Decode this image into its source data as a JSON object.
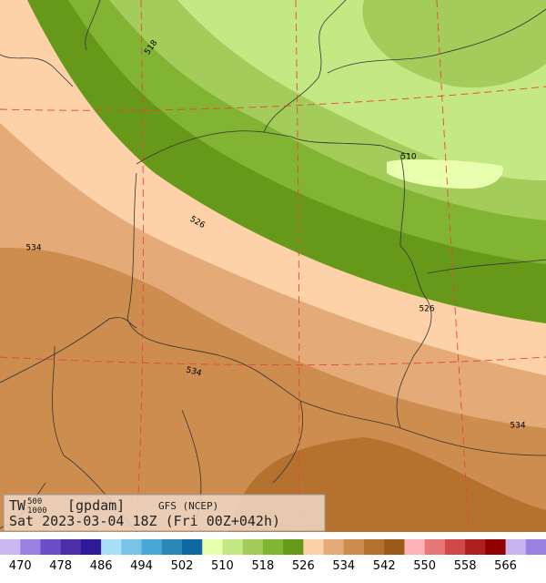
{
  "header": {
    "variable": "TW",
    "upper_level": "500",
    "lower_level": "1000",
    "unit": "[gpdam]",
    "model": "GFS (NCEP)",
    "valid_time": "Sat 2023-03-04 18Z (Fri 00Z+042h)"
  },
  "contour_labels": [
    "518",
    "526",
    "510",
    "534",
    "526",
    "534",
    "534"
  ],
  "colorbar": {
    "colors": [
      "#c9b8ef",
      "#9a80e0",
      "#6a50c8",
      "#4b2ea8",
      "#2e1a98",
      "#a8e0f8",
      "#78c4e8",
      "#48a8d8",
      "#2a88b8",
      "#1068a0",
      "#e8ffb0",
      "#c4e883",
      "#a3cc5a",
      "#80b432",
      "#66991a",
      "#fdd2a8",
      "#e4aa78",
      "#cd8d4f",
      "#b5722f",
      "#9a5a1a",
      "#ffb4b8",
      "#e87878",
      "#d04848",
      "#b02020",
      "#900000",
      "#c8b4f0",
      "#9a80e0"
    ],
    "ticks": [
      "470",
      "478",
      "486",
      "494",
      "502",
      "510",
      "518",
      "526",
      "534",
      "542",
      "550",
      "558",
      "566"
    ]
  }
}
